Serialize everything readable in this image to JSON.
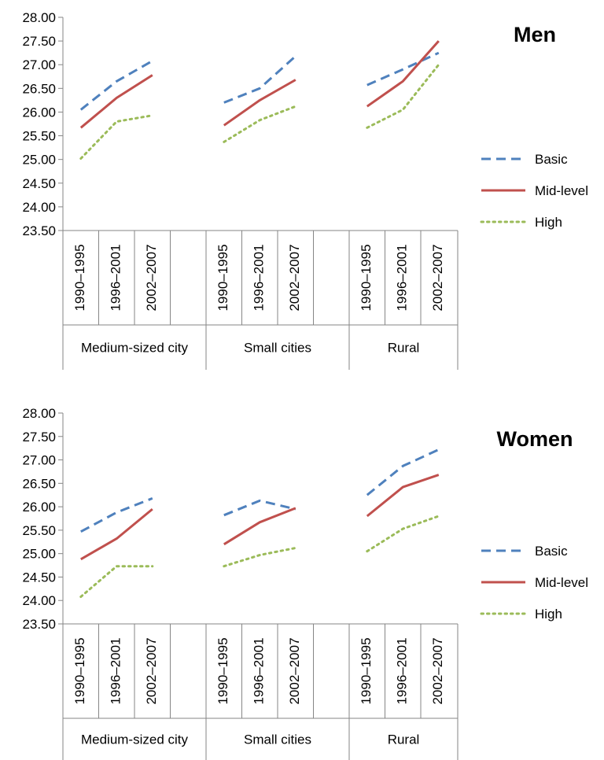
{
  "chart_data": [
    {
      "type": "line",
      "title": "Men",
      "ylim": [
        23.5,
        28.0
      ],
      "yticks": [
        "28.00",
        "27.50",
        "27.00",
        "26.50",
        "26.00",
        "25.50",
        "25.00",
        "24.50",
        "24.00",
        "23.50"
      ],
      "groups": [
        "Medium-sized city",
        "Small cities",
        "Rural"
      ],
      "periods": [
        "1990–1995",
        "1996–2001",
        "2002–2007"
      ],
      "grid": false,
      "legend_position": "right",
      "series": [
        {
          "name": "Basic",
          "color": "#4f81bd",
          "style": "dashed",
          "values": [
            [
              26.05,
              26.65,
              27.08
            ],
            [
              26.2,
              26.5,
              27.18
            ],
            [
              26.57,
              26.9,
              27.25
            ]
          ]
        },
        {
          "name": "Mid-level",
          "color": "#c0504d",
          "style": "solid",
          "values": [
            [
              25.67,
              26.3,
              26.78
            ],
            [
              25.72,
              26.25,
              26.68
            ],
            [
              26.12,
              26.65,
              27.5
            ]
          ]
        },
        {
          "name": "High",
          "color": "#9bbb59",
          "style": "dotted",
          "values": [
            [
              25.02,
              25.8,
              25.93
            ],
            [
              25.37,
              25.83,
              26.12
            ],
            [
              25.67,
              26.05,
              27.0
            ]
          ]
        }
      ]
    },
    {
      "type": "line",
      "title": "Women",
      "ylim": [
        23.5,
        28.0
      ],
      "yticks": [
        "28.00",
        "27.50",
        "27.00",
        "26.50",
        "26.00",
        "25.50",
        "25.00",
        "24.50",
        "24.00",
        "23.50"
      ],
      "groups": [
        "Medium-sized city",
        "Small cities",
        "Rural"
      ],
      "periods": [
        "1990–1995",
        "1996–2001",
        "2002–2007"
      ],
      "grid": false,
      "legend_position": "right",
      "series": [
        {
          "name": "Basic",
          "color": "#4f81bd",
          "style": "dashed",
          "values": [
            [
              25.47,
              25.88,
              26.18
            ],
            [
              25.82,
              26.13,
              25.95
            ],
            [
              26.25,
              26.87,
              27.22
            ]
          ]
        },
        {
          "name": "Mid-level",
          "color": "#c0504d",
          "style": "solid",
          "values": [
            [
              24.88,
              25.32,
              25.95
            ],
            [
              25.2,
              25.67,
              25.97
            ],
            [
              25.8,
              26.42,
              26.68
            ]
          ]
        },
        {
          "name": "High",
          "color": "#9bbb59",
          "style": "dotted",
          "values": [
            [
              24.08,
              24.73,
              24.73
            ],
            [
              24.73,
              24.97,
              25.12
            ],
            [
              25.05,
              25.53,
              25.8
            ]
          ]
        }
      ]
    }
  ]
}
